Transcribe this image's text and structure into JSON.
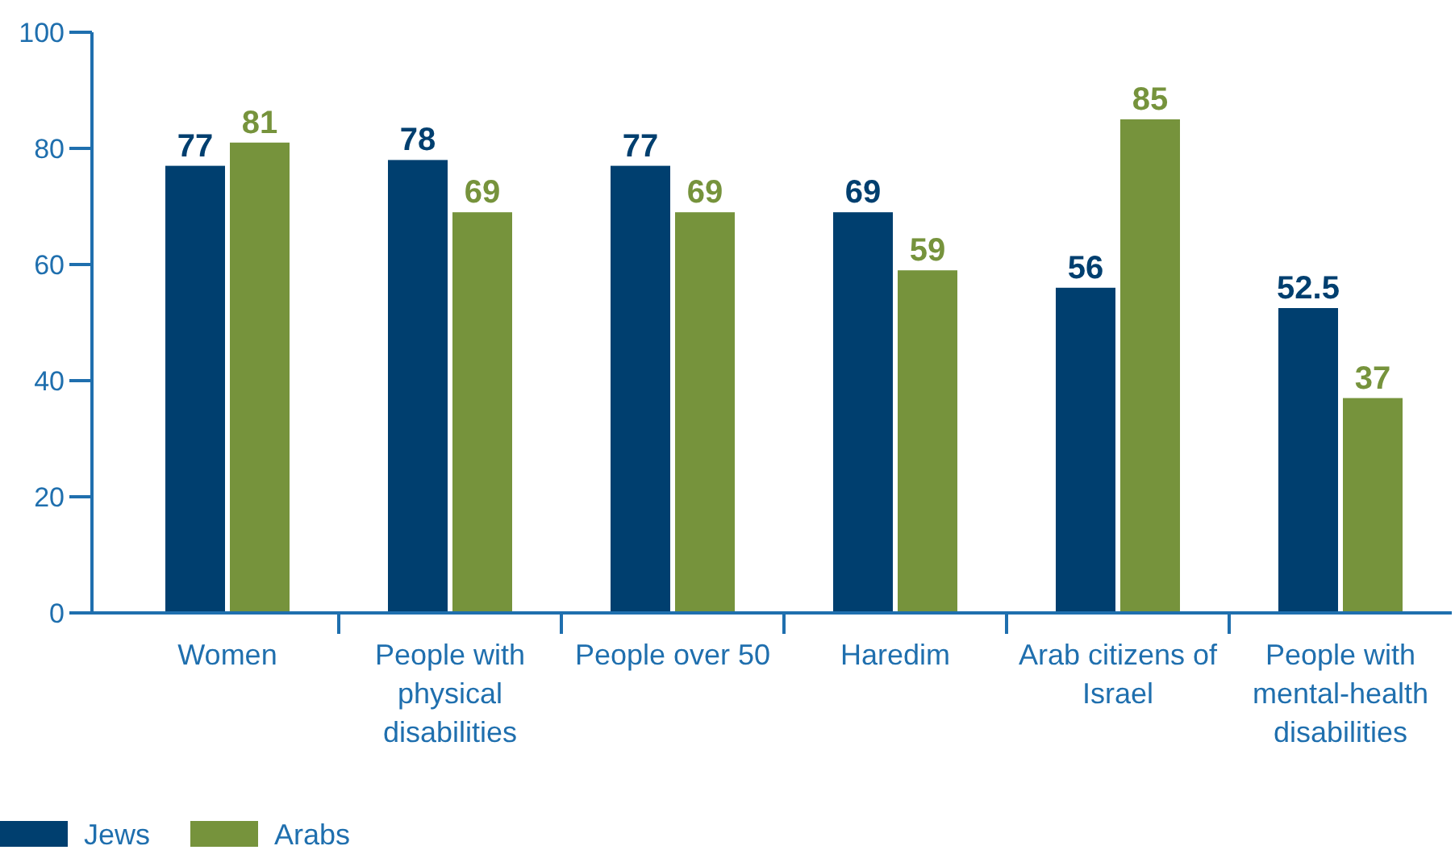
{
  "chart_data": {
    "type": "bar",
    "categories": [
      "Women",
      "People with physical disabilities",
      "People over 50",
      "Haredim",
      "Arab citizens of Israel",
      "People with mental-health disabilities"
    ],
    "series": [
      {
        "name": "Jews",
        "color": "#003f6f",
        "values": [
          77,
          78,
          77,
          69,
          56,
          52.5
        ]
      },
      {
        "name": "Arabs",
        "color": "#76933c",
        "values": [
          81,
          69,
          69,
          59,
          85,
          37
        ]
      }
    ],
    "ylim": [
      0,
      100
    ],
    "yticks": [
      0,
      20,
      40,
      60,
      80,
      100
    ],
    "data_labels": true,
    "legend": "bottom left",
    "grid": false
  }
}
